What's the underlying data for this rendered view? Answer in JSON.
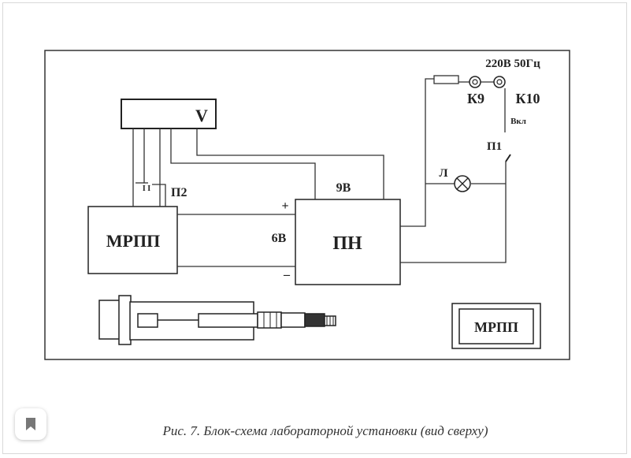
{
  "diagram": {
    "blocks": {
      "voltmeter": "V",
      "mrpp_left": "МРПП",
      "pn": "ПН",
      "mrpp_right": "МРПП"
    },
    "labels": {
      "v9": "9В",
      "v6": "6В",
      "plus": "+",
      "minus": "–",
      "p2": "П2",
      "switch_marks": "I  I",
      "mains": "220В  50Гц",
      "k9": "К9",
      "k10": "К10",
      "on": "Вкл",
      "p1": "П1",
      "lamp": "Л"
    }
  },
  "caption": "Рис. 7. Блок-схема лабораторной установки (вид сверху)",
  "ui": {
    "bookmark_icon": "bookmark-icon"
  }
}
